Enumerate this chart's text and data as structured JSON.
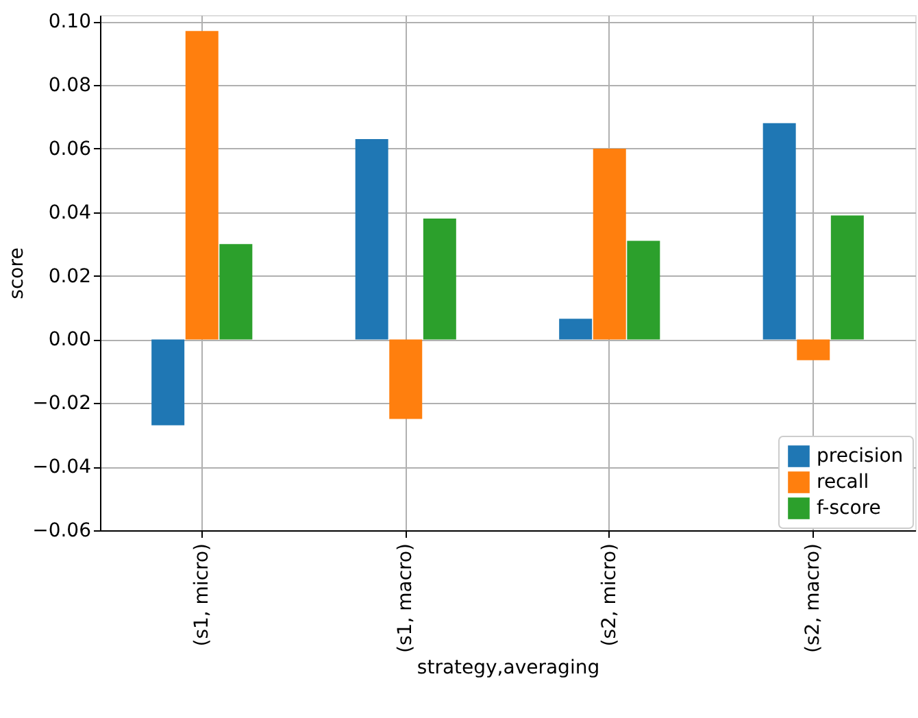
{
  "chart_data": {
    "type": "bar",
    "xlabel": "strategy,averaging",
    "ylabel": "score",
    "categories": [
      "(s1, micro)",
      "(s1, macro)",
      "(s2, micro)",
      "(s2, macro)"
    ],
    "series": [
      {
        "name": "precision",
        "color": "#1f77b4",
        "values": [
          -0.027,
          0.063,
          0.0065,
          0.068
        ]
      },
      {
        "name": "recall",
        "color": "#ff7f0e",
        "values": [
          0.097,
          -0.025,
          0.06,
          -0.0065
        ]
      },
      {
        "name": "f-score",
        "color": "#2ca02c",
        "values": [
          0.03,
          0.038,
          0.031,
          0.039
        ]
      }
    ],
    "ylim": [
      -0.06,
      0.102
    ],
    "yticks": [
      {
        "value": -0.06,
        "label": "−0.06"
      },
      {
        "value": -0.04,
        "label": "−0.04"
      },
      {
        "value": -0.02,
        "label": "−0.02"
      },
      {
        "value": 0,
        "label": "0.00"
      },
      {
        "value": 0.02,
        "label": "0.02"
      },
      {
        "value": 0.04,
        "label": "0.04"
      },
      {
        "value": 0.06,
        "label": "0.06"
      },
      {
        "value": 0.08,
        "label": "0.08"
      },
      {
        "value": 0.1,
        "label": "0.10"
      }
    ],
    "grid": true,
    "legend": "bottom right"
  }
}
